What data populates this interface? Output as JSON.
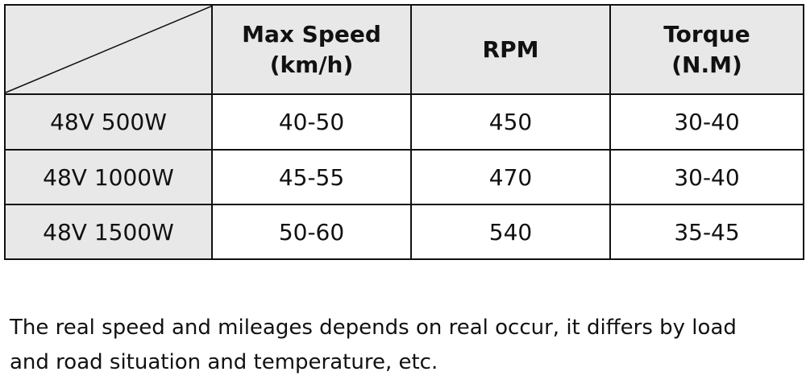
{
  "table": {
    "header": [
      [
        "Max Speed",
        "(km/h)"
      ],
      [
        "RPM"
      ],
      [
        "Torque",
        "(N.M)"
      ]
    ],
    "rows": [
      [
        "48V 500W",
        "40-50",
        "450",
        "30-40"
      ],
      [
        "48V 1000W",
        "45-55",
        "470",
        "30-40"
      ],
      [
        "48V 1500W",
        "50-60",
        "540",
        "35-45"
      ]
    ]
  },
  "note": [
    "The real speed and mileages depends on real occur, it differs by load",
    "and road situation and temperature, etc."
  ]
}
